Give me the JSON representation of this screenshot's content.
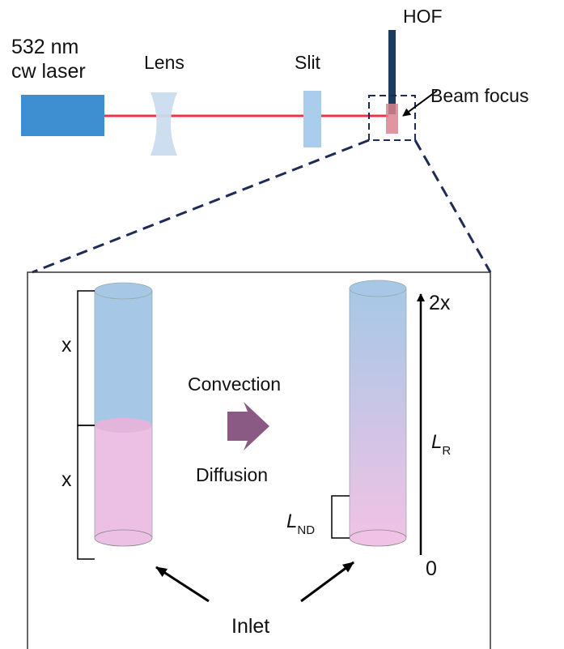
{
  "setup": {
    "laser_line1": "532 nm",
    "laser_line2": "cw laser",
    "lens": "Lens",
    "slit": "Slit",
    "fiber": "HOF",
    "beam_focus": "Beam focus"
  },
  "inset": {
    "left_tube": {
      "top_label": "x",
      "bottom_label": "x"
    },
    "process_top": "Convection",
    "process_bottom": "Diffusion",
    "axis": {
      "top": "2x",
      "bottom": "0"
    },
    "length_r": {
      "main": "L",
      "sub": "R"
    },
    "length_nd": {
      "main": "L",
      "sub": "ND"
    },
    "inlet": "Inlet"
  },
  "colors": {
    "laser_body": "#3d8fd1",
    "beam": "#ee3344",
    "lens": "#c9dcee",
    "slit": "#a9cdea",
    "fiber": "#1d3b5c",
    "focus_box": "#1f2a55",
    "blue_liquid": "#a6c8e6",
    "pink_liquid": "#ecc0e4",
    "arrow": "#8a5a85"
  }
}
